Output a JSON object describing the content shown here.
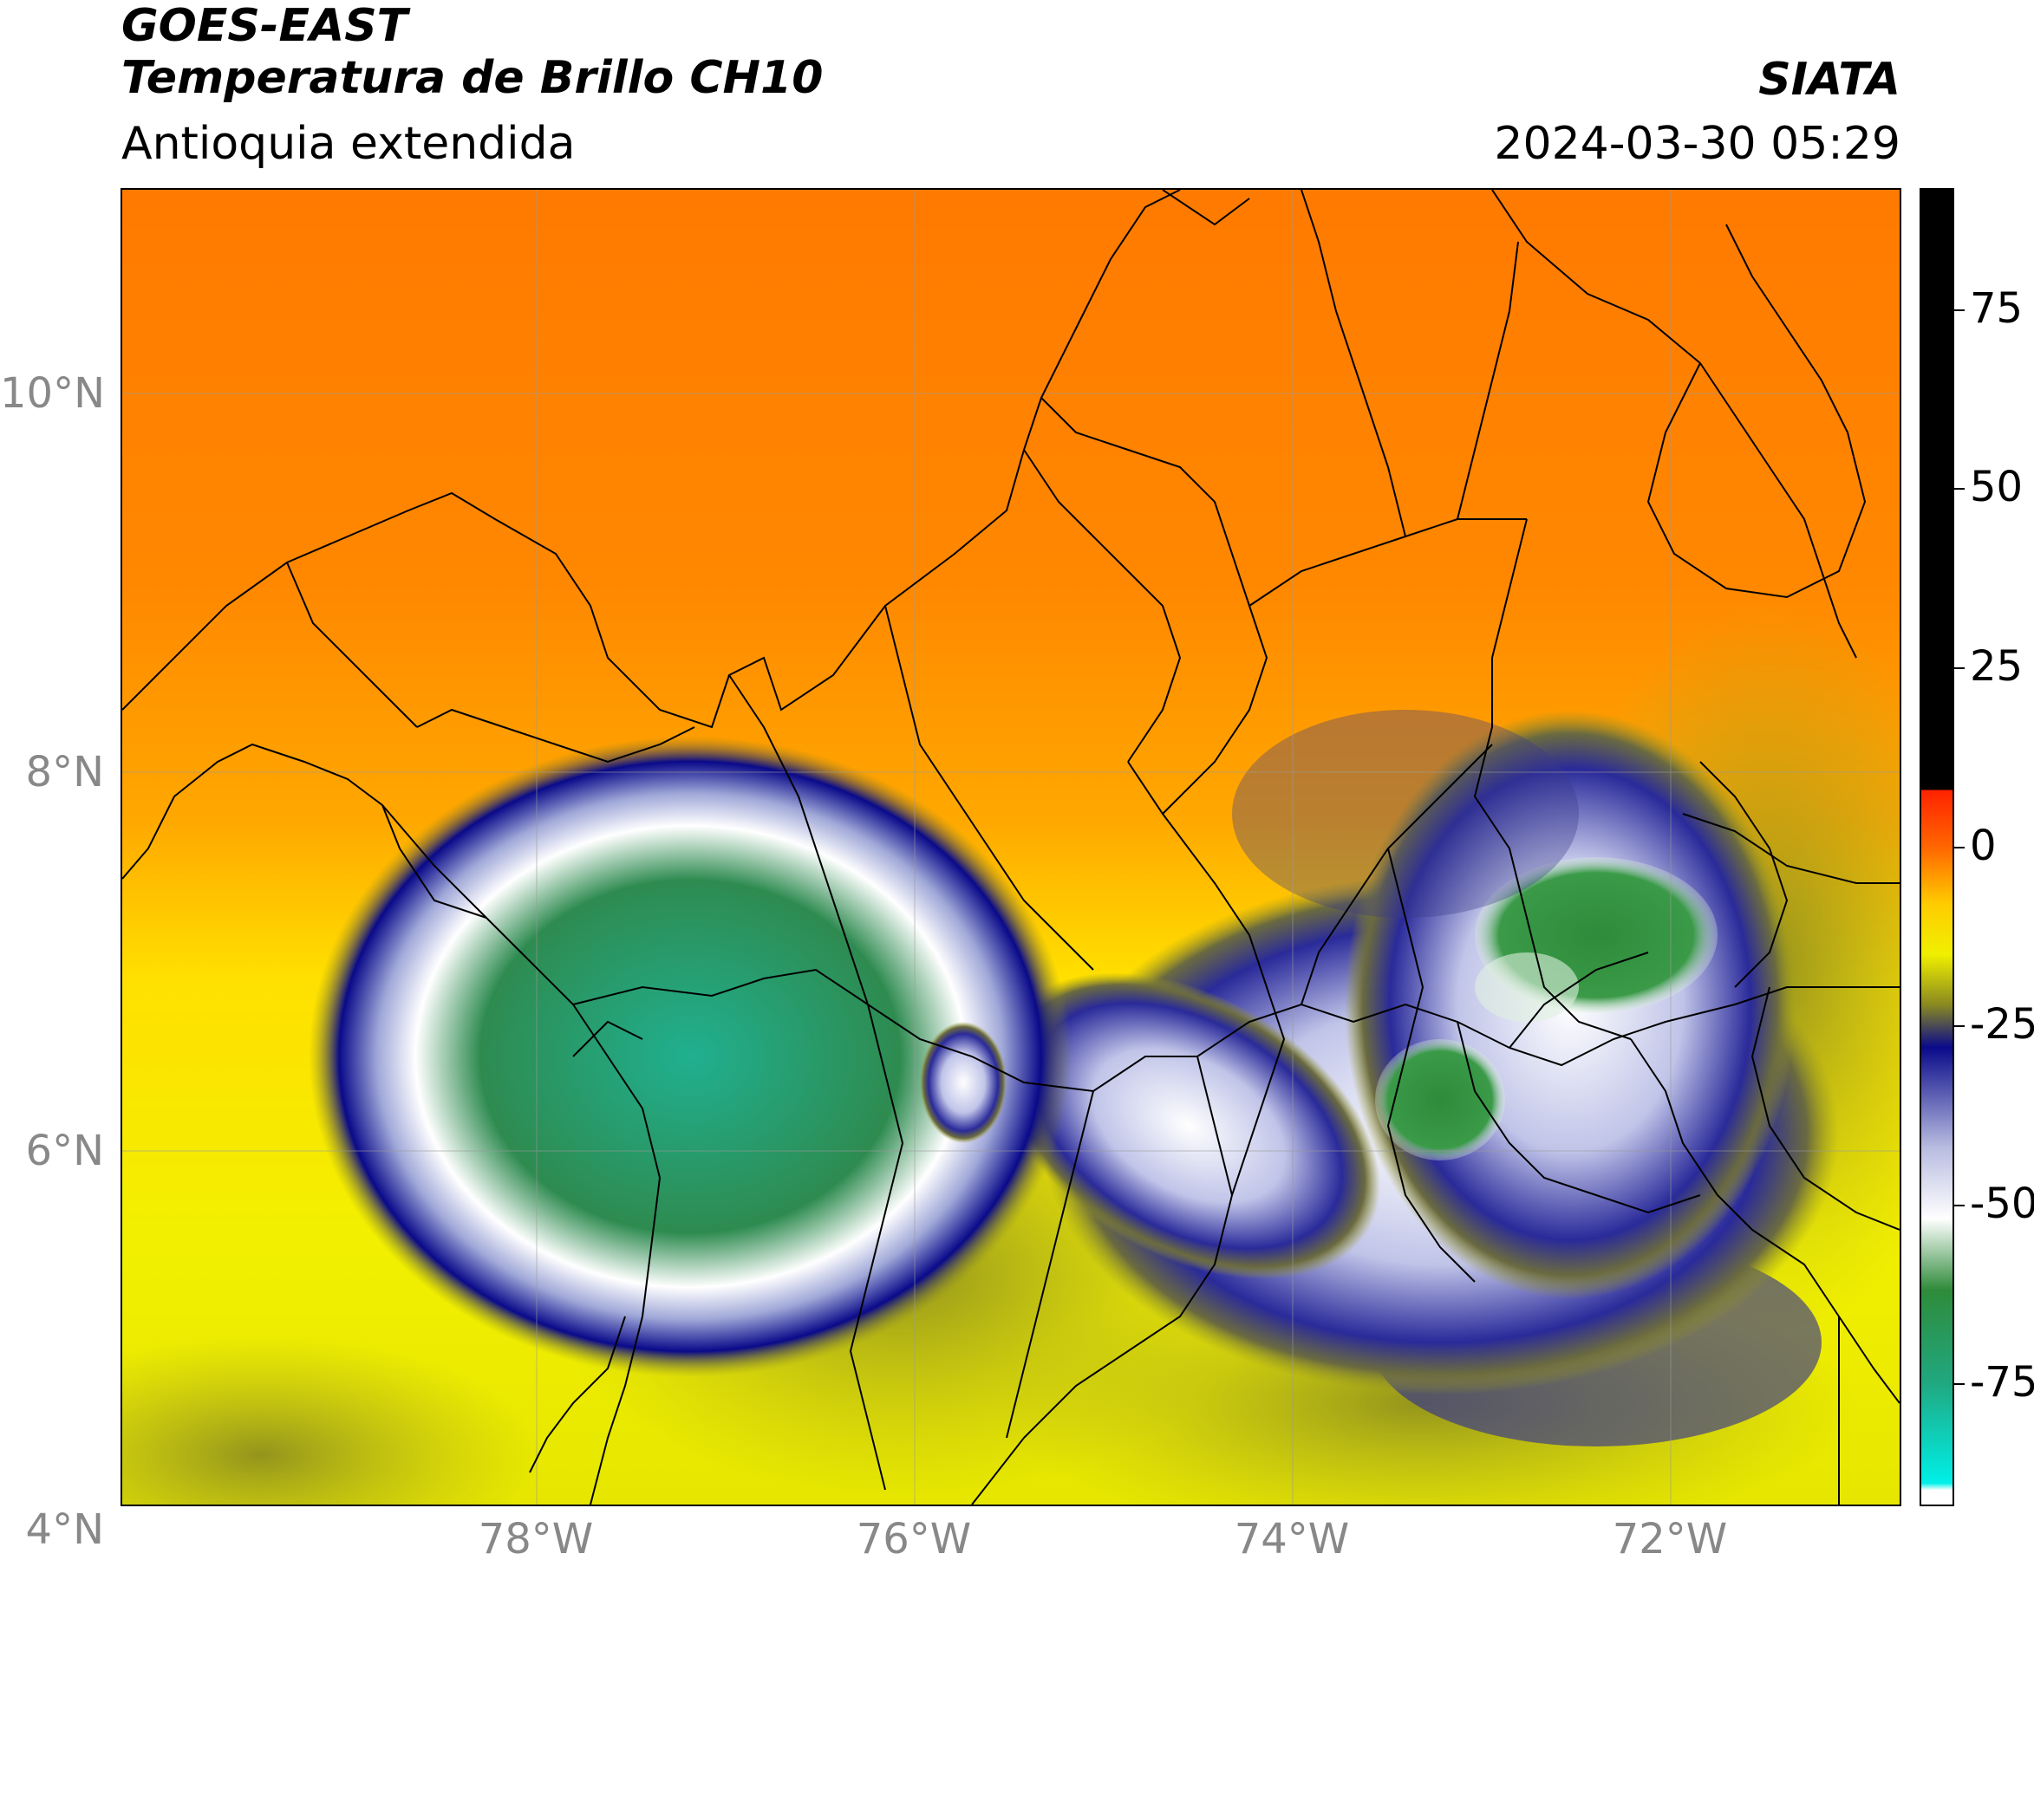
{
  "header": {
    "satellite": "GOES-EAST",
    "product": "Temperatura de Brillo CH10",
    "region": "Antioquia extendida",
    "organization": "SIATA",
    "datetime": "2024-03-30 05:29"
  },
  "map": {
    "lat_labels": [
      "10°N",
      "8°N",
      "6°N",
      "4°N"
    ],
    "lon_labels": [
      "78°W",
      "76°W",
      "74°W",
      "72°W"
    ],
    "lat_range": [
      2.7,
      11.1
    ],
    "lon_range": [
      -80.2,
      -70.8
    ],
    "gridlines": true
  },
  "colorbar": {
    "ticks": [
      "75",
      "50",
      "25",
      "0",
      "-25",
      "-50",
      "-75"
    ],
    "tick_values": [
      75,
      50,
      25,
      0,
      -25,
      -50,
      -75
    ],
    "range": [
      -92,
      92
    ],
    "segments": [
      {
        "from": 8,
        "to": 92,
        "color": "#000000"
      },
      {
        "from": 0,
        "to": 8,
        "color": "#ff2200"
      },
      {
        "from": -15,
        "to": 0,
        "color": "#ffcc00"
      },
      {
        "from": -25,
        "to": -15,
        "color": "#8a8a20"
      },
      {
        "from": -35,
        "to": -25,
        "color": "#0a0a8a"
      },
      {
        "from": -50,
        "to": -35,
        "color": "#b8bce0"
      },
      {
        "from": -60,
        "to": -50,
        "color": "#ffffff"
      },
      {
        "from": -75,
        "to": -60,
        "color": "#2e8b3a"
      },
      {
        "from": -90,
        "to": -75,
        "color": "#00e5e0"
      },
      {
        "from": -92,
        "to": -90,
        "color": "#ffffff"
      }
    ]
  }
}
